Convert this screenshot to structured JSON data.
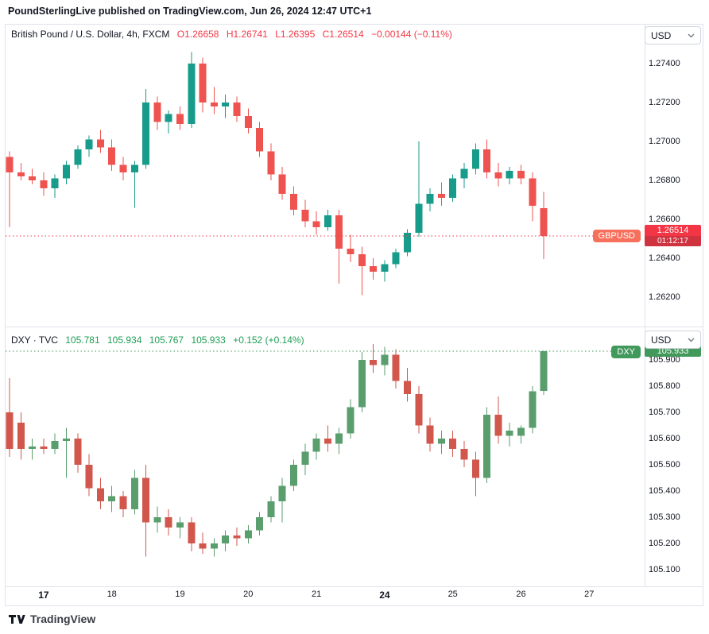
{
  "header": {
    "text": "PoundSterlingLive published on TradingView.com, Jun 26, 2024 12:47 UTC+1"
  },
  "top_pane": {
    "legend": {
      "title": "British Pound / U.S. Dollar, 4h, FXCM",
      "ohlc": [
        "O1.26658",
        "H1.26741",
        "L1.26395",
        "C1.26514"
      ],
      "change": "−0.00144 (−0.11%)"
    },
    "currency_button": "USD",
    "symbol_tag": {
      "label": "GBPUSD",
      "color": "#f7705c"
    },
    "price_box": {
      "value": "1.26514",
      "countdown": "01:12:17",
      "color": "#f23645",
      "countdown_color": "#cf3340"
    }
  },
  "bottom_pane": {
    "legend": {
      "title": "DXY · TVC",
      "values": [
        "105.781",
        "105.934",
        "105.767",
        "105.933"
      ],
      "change": "+0.152 (+0.14%)"
    },
    "currency_button": "USD",
    "symbol_tag": {
      "label": "DXY",
      "color": "#42995c"
    },
    "price_box": {
      "value": "105.933",
      "color": "#42995c"
    }
  },
  "footer": {
    "brand": "TradingView"
  },
  "chart_data": [
    {
      "type": "candlestick",
      "symbol": "GBPUSD",
      "title": "British Pound / U.S. Dollar, 4h, FXCM",
      "timeframe": "4h",
      "exchange": "FXCM",
      "grid": false,
      "legend_position": "top-left",
      "up_color": "#179b8a",
      "down_color": "#ef5350",
      "line_color": "#f23645",
      "current_price": 1.26514,
      "ohlc_display": {
        "o": 1.26658,
        "h": 1.26741,
        "l": 1.26395,
        "c": 1.26514,
        "change": -0.00144,
        "change_pct": -0.11
      },
      "ylim": [
        1.2606,
        1.275
      ],
      "y_ticks": [
        "1.27400",
        "1.27200",
        "1.27000",
        "1.26800",
        "1.26600",
        "1.26400",
        "1.26200"
      ],
      "x_ticks": [
        {
          "label": "17",
          "index": 3,
          "bold": true
        },
        {
          "label": "18",
          "index": 9
        },
        {
          "label": "19",
          "index": 15
        },
        {
          "label": "20",
          "index": 21
        },
        {
          "label": "21",
          "index": 27
        },
        {
          "label": "24",
          "index": 33,
          "bold": true
        },
        {
          "label": "25",
          "index": 39
        },
        {
          "label": "26",
          "index": 45
        },
        {
          "label": "27",
          "index": 51
        }
      ],
      "candles": [
        [
          1.2692,
          1.2695,
          1.2656,
          1.2684
        ],
        [
          1.2684,
          1.2689,
          1.268,
          1.2682
        ],
        [
          1.2682,
          1.2686,
          1.2678,
          1.268
        ],
        [
          1.268,
          1.2684,
          1.2672,
          1.2676
        ],
        [
          1.2676,
          1.2683,
          1.2671,
          1.2681
        ],
        [
          1.2681,
          1.269,
          1.2678,
          1.2688
        ],
        [
          1.2688,
          1.2698,
          1.2686,
          1.2696
        ],
        [
          1.2696,
          1.2703,
          1.2692,
          1.2701
        ],
        [
          1.2701,
          1.2706,
          1.2694,
          1.2697
        ],
        [
          1.2697,
          1.2701,
          1.2685,
          1.2688
        ],
        [
          1.2688,
          1.2692,
          1.268,
          1.2684
        ],
        [
          1.2684,
          1.269,
          1.2666,
          1.2688
        ],
        [
          1.2688,
          1.2727,
          1.2686,
          1.272
        ],
        [
          1.272,
          1.2723,
          1.2706,
          1.271
        ],
        [
          1.271,
          1.2716,
          1.2704,
          1.2714
        ],
        [
          1.2714,
          1.2718,
          1.2706,
          1.2709
        ],
        [
          1.2709,
          1.2746,
          1.2707,
          1.274
        ],
        [
          1.274,
          1.2743,
          1.2715,
          1.272
        ],
        [
          1.272,
          1.2728,
          1.2714,
          1.2718
        ],
        [
          1.2718,
          1.2724,
          1.2712,
          1.272
        ],
        [
          1.272,
          1.2723,
          1.271,
          1.2713
        ],
        [
          1.2713,
          1.2717,
          1.2704,
          1.2707
        ],
        [
          1.2707,
          1.271,
          1.2692,
          1.2695
        ],
        [
          1.2695,
          1.2699,
          1.268,
          1.2683
        ],
        [
          1.2683,
          1.2687,
          1.267,
          1.2673
        ],
        [
          1.2673,
          1.2677,
          1.2662,
          1.2665
        ],
        [
          1.2665,
          1.267,
          1.2656,
          1.2659
        ],
        [
          1.2659,
          1.2664,
          1.2652,
          1.2656
        ],
        [
          1.2656,
          1.2665,
          1.2654,
          1.2662
        ],
        [
          1.2662,
          1.2665,
          1.2627,
          1.2645
        ],
        [
          1.2645,
          1.2652,
          1.2638,
          1.2642
        ],
        [
          1.2642,
          1.2646,
          1.2621,
          1.2636
        ],
        [
          1.2636,
          1.264,
          1.2629,
          1.2633
        ],
        [
          1.2633,
          1.2639,
          1.2628,
          1.2637
        ],
        [
          1.2637,
          1.2645,
          1.2635,
          1.2643
        ],
        [
          1.2643,
          1.2655,
          1.2641,
          1.2653
        ],
        [
          1.2653,
          1.27,
          1.2651,
          1.2668
        ],
        [
          1.2668,
          1.2676,
          1.2664,
          1.2673
        ],
        [
          1.2673,
          1.2679,
          1.2667,
          1.2671
        ],
        [
          1.2671,
          1.2683,
          1.2669,
          1.2681
        ],
        [
          1.2681,
          1.2689,
          1.2676,
          1.2686
        ],
        [
          1.2686,
          1.2699,
          1.2683,
          1.2696
        ],
        [
          1.2696,
          1.2701,
          1.2681,
          1.2684
        ],
        [
          1.2684,
          1.2689,
          1.2677,
          1.2681
        ],
        [
          1.2681,
          1.2687,
          1.2678,
          1.2685
        ],
        [
          1.2685,
          1.2688,
          1.2678,
          1.2681
        ],
        [
          1.2681,
          1.2684,
          1.2659,
          1.2667
        ],
        [
          1.26658,
          1.26741,
          1.26395,
          1.26514
        ]
      ]
    },
    {
      "type": "candlestick",
      "symbol": "DXY",
      "title": "DXY · TVC",
      "exchange": "TVC",
      "grid": false,
      "legend_position": "top-left",
      "up_color": "#5a9e6e",
      "down_color": "#d1574c",
      "line_color": "#42995c",
      "current_price": 105.933,
      "ohlc_display": {
        "o": 105.781,
        "h": 105.934,
        "l": 105.767,
        "c": 105.933,
        "change": 0.152,
        "change_pct": 0.14
      },
      "ylim": [
        105.05,
        106.02
      ],
      "y_ticks": [
        "105.900",
        "105.800",
        "105.700",
        "105.600",
        "105.500",
        "105.400",
        "105.300",
        "105.200",
        "105.100"
      ],
      "candles": [
        [
          105.7,
          105.83,
          105.53,
          105.56
        ],
        [
          105.66,
          105.7,
          105.52,
          105.56
        ],
        [
          105.56,
          105.6,
          105.52,
          105.57
        ],
        [
          105.57,
          105.6,
          105.54,
          105.56
        ],
        [
          105.56,
          105.62,
          105.54,
          105.59
        ],
        [
          105.59,
          105.64,
          105.45,
          105.6
        ],
        [
          105.6,
          105.62,
          105.47,
          105.5
        ],
        [
          105.5,
          105.54,
          105.38,
          105.41
        ],
        [
          105.41,
          105.45,
          105.33,
          105.36
        ],
        [
          105.36,
          105.42,
          105.32,
          105.38
        ],
        [
          105.38,
          105.4,
          105.3,
          105.33
        ],
        [
          105.33,
          105.48,
          105.31,
          105.45
        ],
        [
          105.45,
          105.5,
          105.15,
          105.28
        ],
        [
          105.28,
          105.34,
          105.24,
          105.3
        ],
        [
          105.3,
          105.33,
          105.23,
          105.26
        ],
        [
          105.26,
          105.3,
          105.22,
          105.28
        ],
        [
          105.28,
          105.3,
          105.17,
          105.2
        ],
        [
          105.2,
          105.24,
          105.16,
          105.18
        ],
        [
          105.18,
          105.22,
          105.15,
          105.2
        ],
        [
          105.2,
          105.25,
          105.17,
          105.23
        ],
        [
          105.23,
          105.26,
          105.19,
          105.22
        ],
        [
          105.22,
          105.27,
          105.2,
          105.25
        ],
        [
          105.25,
          105.32,
          105.23,
          105.3
        ],
        [
          105.3,
          105.38,
          105.28,
          105.36
        ],
        [
          105.36,
          105.45,
          105.28,
          105.42
        ],
        [
          105.42,
          105.52,
          105.4,
          105.5
        ],
        [
          105.5,
          105.58,
          105.46,
          105.55
        ],
        [
          105.55,
          105.62,
          105.52,
          105.6
        ],
        [
          105.6,
          105.65,
          105.55,
          105.58
        ],
        [
          105.58,
          105.64,
          105.54,
          105.62
        ],
        [
          105.62,
          105.75,
          105.6,
          105.72
        ],
        [
          105.72,
          105.93,
          105.7,
          105.9
        ],
        [
          105.9,
          105.96,
          105.85,
          105.88
        ],
        [
          105.88,
          105.95,
          105.84,
          105.92
        ],
        [
          105.92,
          105.94,
          105.79,
          105.82
        ],
        [
          105.82,
          105.87,
          105.74,
          105.77
        ],
        [
          105.77,
          105.8,
          105.62,
          105.65
        ],
        [
          105.65,
          105.68,
          105.55,
          105.58
        ],
        [
          105.58,
          105.63,
          105.54,
          105.6
        ],
        [
          105.6,
          105.63,
          105.53,
          105.56
        ],
        [
          105.56,
          105.59,
          105.49,
          105.52
        ],
        [
          105.52,
          105.55,
          105.38,
          105.45
        ],
        [
          105.45,
          105.72,
          105.43,
          105.69
        ],
        [
          105.69,
          105.76,
          105.58,
          105.61
        ],
        [
          105.61,
          105.66,
          105.57,
          105.63
        ],
        [
          105.61,
          105.65,
          105.58,
          105.64
        ],
        [
          105.64,
          105.8,
          105.62,
          105.78
        ],
        [
          105.781,
          105.934,
          105.767,
          105.933
        ]
      ]
    }
  ]
}
